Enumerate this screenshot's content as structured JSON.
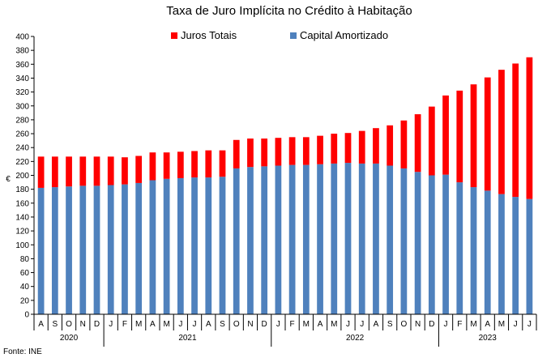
{
  "chart_data": {
    "type": "bar",
    "stacked": true,
    "title": "Taxa de Juro Implícita no Crédito à Habitação",
    "ylabel": "€",
    "ylim": [
      0,
      400
    ],
    "yticks": [
      0,
      20,
      40,
      60,
      80,
      100,
      120,
      140,
      160,
      180,
      200,
      220,
      240,
      260,
      280,
      300,
      320,
      340,
      360,
      380,
      400
    ],
    "grid": false,
    "legend_position": "top",
    "source": "Fonte: INE",
    "categories": [
      "A",
      "S",
      "O",
      "N",
      "D",
      "J",
      "F",
      "M",
      "A",
      "M",
      "J",
      "J",
      "A",
      "S",
      "O",
      "N",
      "D",
      "J",
      "F",
      "M",
      "A",
      "M",
      "J",
      "J",
      "A",
      "S",
      "O",
      "N",
      "D",
      "J",
      "F",
      "M",
      "A",
      "M",
      "J",
      "J"
    ],
    "year_groups": [
      {
        "label": "2020",
        "count": 5
      },
      {
        "label": "2021",
        "count": 12
      },
      {
        "label": "2022",
        "count": 12
      },
      {
        "label": "2023",
        "count": 7
      }
    ],
    "series": [
      {
        "name": "Capital Amortizado",
        "color": "#4F81BD",
        "values": [
          182,
          183,
          184,
          185,
          185,
          186,
          187,
          189,
          193,
          195,
          196,
          197,
          197,
          198,
          210,
          212,
          213,
          214,
          215,
          215,
          216,
          217,
          218,
          217,
          217,
          214,
          210,
          205,
          200,
          201,
          190,
          183,
          178,
          173,
          169,
          166
        ]
      },
      {
        "name": "Juros Totais",
        "color": "#FF0000",
        "values": [
          45,
          44,
          43,
          42,
          42,
          41,
          39,
          39,
          40,
          38,
          38,
          38,
          39,
          38,
          41,
          41,
          40,
          40,
          40,
          40,
          41,
          43,
          43,
          47,
          51,
          58,
          69,
          83,
          99,
          114,
          132,
          148,
          163,
          179,
          192,
          204
        ]
      }
    ],
    "legend_order": [
      "Juros Totais",
      "Capital Amortizado"
    ]
  }
}
